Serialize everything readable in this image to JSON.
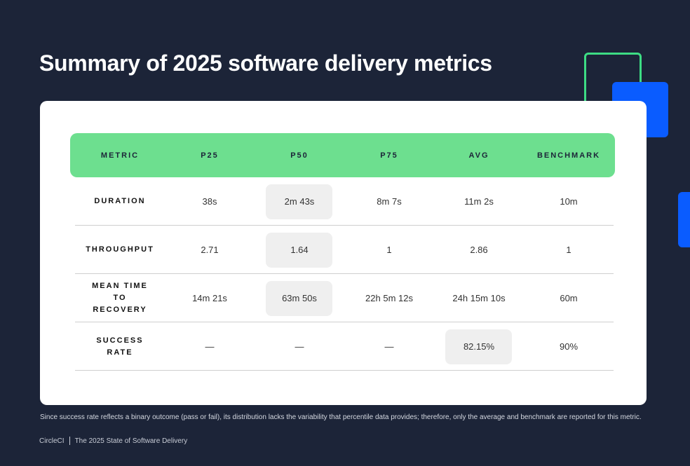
{
  "header": {
    "title": "Summary of 2025 software delivery metrics"
  },
  "table": {
    "columns": [
      "METRIC",
      "P25",
      "P50",
      "P75",
      "AVG",
      "BENCHMARK"
    ],
    "rows": [
      [
        "DURATION",
        "38s",
        "2m 43s",
        "8m 7s",
        "11m 2s",
        "10m"
      ],
      [
        "THROUGHPUT",
        "2.71",
        "1.64",
        "1",
        "2.86",
        "1"
      ],
      [
        "MEAN TIME TO RECOVERY",
        "14m 21s",
        "63m 50s",
        "22h 5m 12s",
        "24h 15m 10s",
        "60m"
      ],
      [
        "SUCCESS RATE",
        "—",
        "—",
        "—",
        "82.15%",
        "90%"
      ]
    ]
  },
  "note": "Since success rate reflects a binary outcome (pass or fail), its distribution lacks the variability that percentile data provides; therefore, only the average and benchmark are reported for this metric.",
  "footer": {
    "brand": "CircleCI",
    "publication": "The 2025 State of Software Delivery"
  }
}
